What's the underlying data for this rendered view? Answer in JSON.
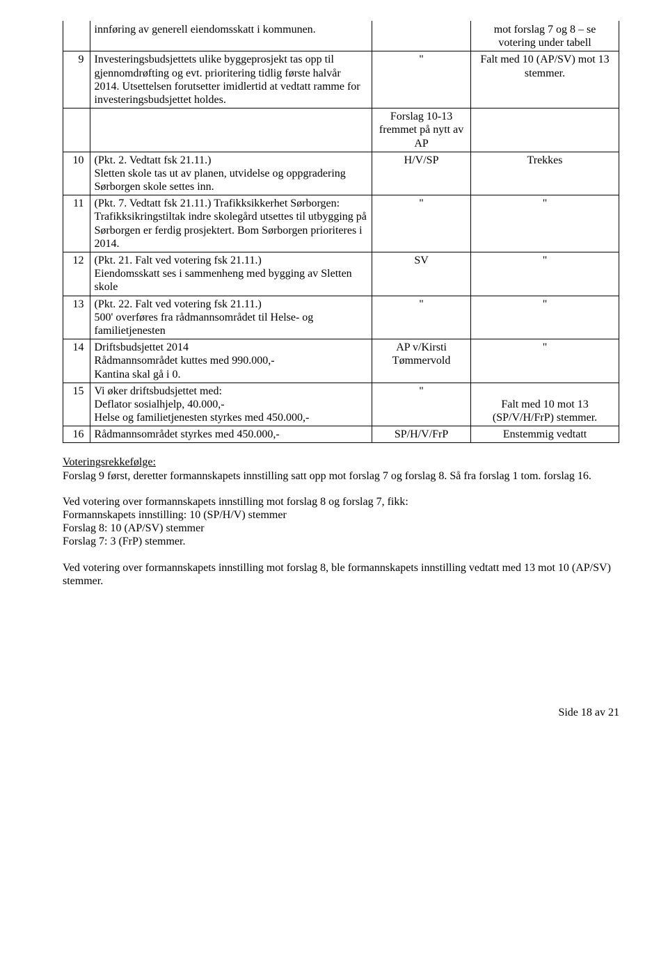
{
  "rows": [
    {
      "num": "",
      "desc": "innføring av generell eiendomsskatt i kommunen.",
      "mid": "",
      "res": "mot forslag 7 og 8 – se votering under tabell",
      "numNoTop": true,
      "descNoTop": true,
      "midNoTop": true,
      "resNoTop": true
    },
    {
      "num": "9",
      "desc": "Investeringsbudsjettets ulike byggeprosjekt tas opp til gjennomdrøfting og evt. prioritering tidlig første halvår 2014. Utsettelsen forutsetter imidlertid at vedtatt ramme for investeringsbudsjettet holdes.",
      "mid": "\"",
      "res": "Falt med 10 (AP/SV) mot 13 stemmer."
    },
    {
      "num": "",
      "desc": "",
      "mid": "Forslag 10-13 fremmet på nytt av AP",
      "res": ""
    },
    {
      "num": "10",
      "desc": "(Pkt. 2. Vedtatt fsk 21.11.)\nSletten skole tas ut av planen, utvidelse og oppgradering Sørborgen skole settes inn.",
      "mid": "H/V/SP",
      "res": "Trekkes"
    },
    {
      "num": "11",
      "desc": " (Pkt. 7. Vedtatt fsk 21.11.)  Trafikksikkerhet Sørborgen: Trafikksikringstiltak indre skolegård utsettes til utbygging på Sørborgen er ferdig prosjektert. Bom Sørborgen prioriteres i 2014.",
      "mid": "\"",
      "res": "\""
    },
    {
      "num": "12",
      "desc": "(Pkt. 21. Falt ved votering fsk 21.11.)\nEiendomsskatt ses i sammenheng med bygging av Sletten skole",
      "mid": "SV",
      "res": "\""
    },
    {
      "num": "13",
      "desc": "(Pkt. 22. Falt ved votering fsk 21.11.)\n500' overføres fra rådmannsområdet til Helse- og familietjenesten",
      "mid": "\"",
      "res": "\""
    },
    {
      "num": "14",
      "desc": "Driftsbudsjettet 2014\nRådmannsområdet kuttes med 990.000,-\nKantina skal gå i 0.",
      "mid": "AP v/Kirsti Tømmervold",
      "res": "\""
    },
    {
      "num": "15",
      "desc": "Vi øker driftsbudsjettet med:\nDeflator sosialhjelp, 40.000,-\nHelse og familietjenesten styrkes med 450.000,-",
      "mid": "\"",
      "res": "\nFalt med 10 mot 13 (SP/V/H/FrP) stemmer."
    },
    {
      "num": "16",
      "desc": "Rådmannsområdet styrkes med 450.000,-",
      "mid": "SP/H/V/FrP",
      "res": "Enstemmig vedtatt"
    }
  ],
  "voting_order_label": "Voteringsrekkefølge:",
  "voting_order_text": "Forslag 9 først, deretter formannskapets innstilling satt opp mot forslag 7 og forslag 8. Så fra forslag 1 tom. forslag 16.",
  "block2_l1": "Ved votering over formannskapets innstilling mot forslag 8 og forslag 7, fikk:",
  "block2_l2": "Formannskapets innstilling: 10 (SP/H/V) stemmer",
  "block2_l3": "Forslag 8: 10 (AP/SV) stemmer",
  "block2_l4": "Forslag 7: 3 (FrP) stemmer.",
  "block3": "Ved votering over formannskapets innstilling mot forslag 8, ble formannskapets innstilling vedtatt med 13 mot 10 (AP/SV) stemmer.",
  "footer": "Side 18 av 21"
}
